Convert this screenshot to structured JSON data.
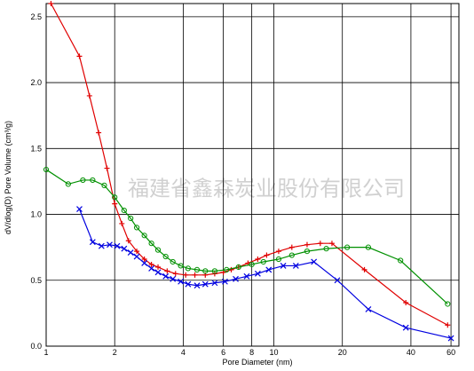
{
  "chart_data": {
    "type": "line",
    "xlabel": "Pore Diameter (nm)",
    "ylabel": "dV/dlog(D) Pore Volume (cm³/g)",
    "watermark": "福建省鑫森炭业股份有限公司",
    "xscale": "log",
    "grid": true,
    "xlim": [
      1,
      65
    ],
    "ylim": [
      0,
      2.6
    ],
    "xticks": [
      1,
      2,
      4,
      6,
      8,
      10,
      20,
      40,
      60
    ],
    "yticks": [
      {
        "value": 0,
        "label": "0.0"
      },
      {
        "value": 0.5,
        "label": "0.5"
      },
      {
        "value": 1,
        "label": "1.0"
      },
      {
        "value": 1.5,
        "label": "1.5"
      },
      {
        "value": 2,
        "label": "2.0"
      },
      {
        "value": 2.5,
        "label": "2.5"
      }
    ],
    "series": [
      {
        "color": "#e00000",
        "marker": "plus",
        "x": [
          1.05,
          1.4,
          1.55,
          1.7,
          1.85,
          2.0,
          2.15,
          2.3,
          2.5,
          2.7,
          2.9,
          3.1,
          3.4,
          3.7,
          4.1,
          4.5,
          5,
          5.5,
          6,
          6.5,
          7,
          7.7,
          8.5,
          9.3,
          10.5,
          12,
          14,
          16,
          18,
          25,
          38,
          58
        ],
        "values": [
          2.6,
          2.2,
          1.9,
          1.62,
          1.35,
          1.08,
          0.93,
          0.8,
          0.72,
          0.66,
          0.62,
          0.6,
          0.57,
          0.55,
          0.54,
          0.54,
          0.54,
          0.55,
          0.56,
          0.58,
          0.6,
          0.63,
          0.66,
          0.69,
          0.72,
          0.75,
          0.77,
          0.78,
          0.78,
          0.58,
          0.33,
          0.16
        ]
      },
      {
        "color": "#009000",
        "marker": "circle",
        "x": [
          1.0,
          1.25,
          1.45,
          1.6,
          1.8,
          2.0,
          2.2,
          2.35,
          2.5,
          2.7,
          2.9,
          3.1,
          3.35,
          3.6,
          3.9,
          4.2,
          4.6,
          5.0,
          5.5,
          6.2,
          7,
          8,
          9,
          10.5,
          12,
          14,
          17,
          21,
          26,
          36,
          58
        ],
        "values": [
          1.34,
          1.23,
          1.26,
          1.26,
          1.22,
          1.13,
          1.03,
          0.97,
          0.9,
          0.84,
          0.78,
          0.73,
          0.68,
          0.64,
          0.61,
          0.59,
          0.58,
          0.57,
          0.57,
          0.58,
          0.6,
          0.62,
          0.64,
          0.66,
          0.69,
          0.72,
          0.74,
          0.75,
          0.75,
          0.65,
          0.32
        ]
      },
      {
        "color": "#0000e0",
        "marker": "cross",
        "x": [
          1.4,
          1.6,
          1.75,
          1.9,
          2.05,
          2.2,
          2.35,
          2.5,
          2.7,
          2.9,
          3.1,
          3.35,
          3.6,
          3.9,
          4.2,
          4.6,
          5,
          5.5,
          6.1,
          6.8,
          7.6,
          8.5,
          9.5,
          11,
          12.5,
          15,
          19,
          26,
          38,
          60
        ],
        "values": [
          1.04,
          0.79,
          0.76,
          0.77,
          0.76,
          0.74,
          0.71,
          0.68,
          0.63,
          0.59,
          0.56,
          0.53,
          0.51,
          0.49,
          0.47,
          0.46,
          0.47,
          0.48,
          0.49,
          0.51,
          0.53,
          0.55,
          0.58,
          0.61,
          0.61,
          0.64,
          0.5,
          0.28,
          0.14,
          0.06
        ]
      }
    ]
  }
}
